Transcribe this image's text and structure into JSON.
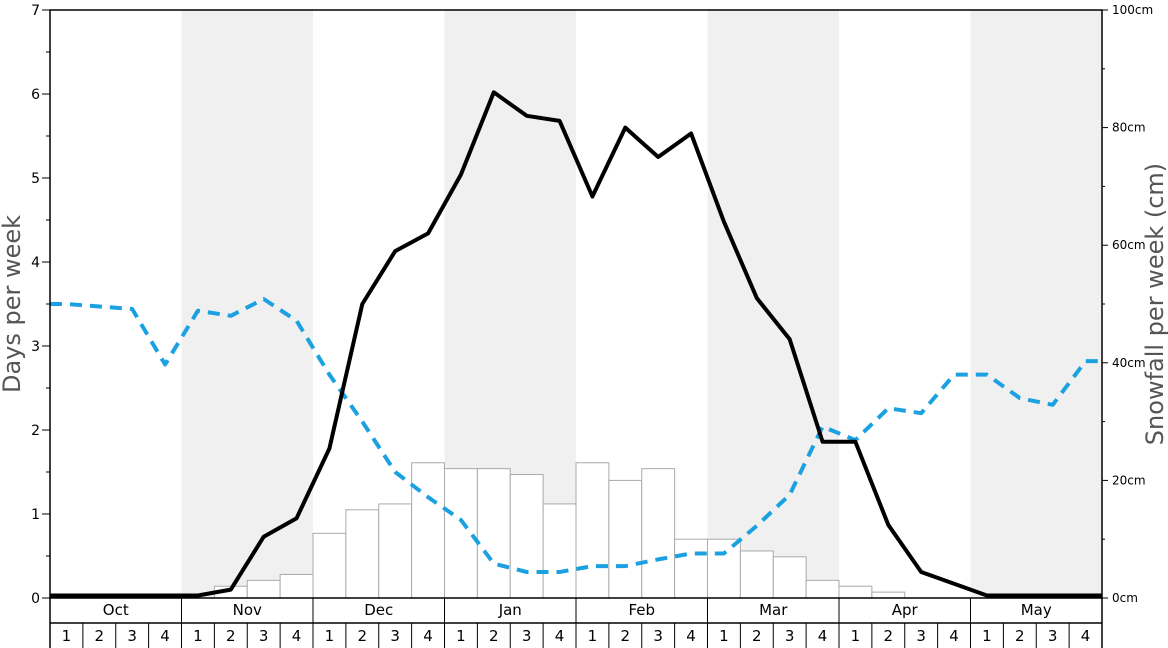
{
  "chart_data": {
    "type": "line",
    "title": "",
    "ylabel_left": "Days per week",
    "ylabel_right": "Snowfall per week (cm)",
    "ylim_left": [
      0,
      7
    ],
    "ylim_right": [
      0,
      100
    ],
    "left_ticks": [
      "0",
      "1",
      "2",
      "3",
      "4",
      "5",
      "6",
      "7"
    ],
    "right_ticks": [
      "0cm",
      "20cm",
      "40cm",
      "60cm",
      "80cm",
      "100cm"
    ],
    "months": [
      "Oct",
      "Nov",
      "Dec",
      "Jan",
      "Feb",
      "Mar",
      "Apr",
      "May"
    ],
    "weeks": [
      "1",
      "2",
      "3",
      "4"
    ],
    "shaded_months": [
      "Nov",
      "Jan",
      "Mar",
      "May"
    ],
    "colors": {
      "shade": "#f0f0f0",
      "bar_fill": "#ffffff",
      "bar_stroke": "#aaaaaa",
      "black_line": "#000000",
      "blue_dashed_line": "#1ba1e2"
    },
    "series": [
      {
        "type": "line",
        "axis": "left",
        "color": "#000000",
        "values": [
          0.03,
          0.03,
          0.03,
          0.03,
          0.03,
          0.1,
          0.73,
          0.95,
          1.78,
          3.5,
          4.13,
          4.34,
          5.04,
          6.02,
          5.74,
          5.68,
          4.78,
          5.6,
          5.25,
          5.53,
          4.48,
          3.57,
          3.08,
          1.86,
          1.86,
          0.87,
          0.31,
          0.17,
          0.03,
          0.03,
          0.03,
          0.03
        ]
      },
      {
        "type": "bar",
        "axis": "right",
        "values": [
          0,
          0,
          0,
          0,
          0,
          2,
          3,
          4,
          11,
          15,
          16,
          23,
          22,
          22,
          21,
          16,
          23,
          20,
          22,
          10,
          10,
          8,
          7,
          3,
          2,
          1,
          0,
          0,
          0,
          0,
          0,
          0
        ]
      },
      {
        "type": "line",
        "style": "dashed",
        "axis": "left",
        "color": "#1ba1e2",
        "values": [
          3.5,
          3.47,
          3.44,
          2.78,
          3.42,
          3.36,
          3.56,
          3.3,
          2.66,
          2.1,
          1.5,
          1.2,
          0.93,
          0.41,
          0.31,
          0.31,
          0.38,
          0.38,
          0.46,
          0.53,
          0.53,
          0.86,
          1.23,
          2.04,
          1.88,
          2.26,
          2.2,
          2.66,
          2.66,
          2.38,
          2.3,
          2.82
        ]
      }
    ]
  }
}
